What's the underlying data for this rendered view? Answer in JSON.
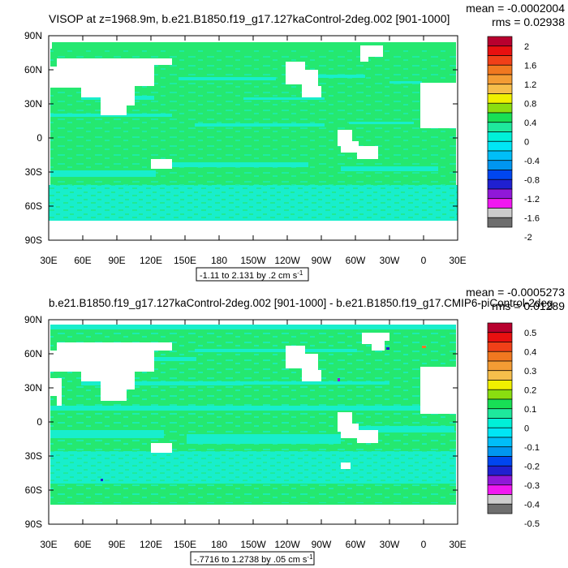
{
  "panels": [
    {
      "title": "VISOP at z=1968.9m, b.e21.B1850.f19_g17.127kaControl-2deg.002 [901-1000]",
      "mean_text": "mean = -0.0002004",
      "rms_text": "rms = 0.02938",
      "range_text": "-1.11 to 2.131 by .2 cm s",
      "range_unit_exp": "-1",
      "chart_data": {
        "type": "heatmap",
        "x_ticks": [
          "30E",
          "60E",
          "90E",
          "120E",
          "150E",
          "180",
          "150W",
          "120W",
          "90W",
          "60W",
          "30W",
          "0",
          "30E"
        ],
        "y_ticks": [
          "90N",
          "60N",
          "30N",
          "0",
          "30S",
          "60S",
          "90S"
        ],
        "colorbar_levels": [
          "2",
          "1.6",
          "1.2",
          "0.8",
          "0.4",
          "0",
          "-0.4",
          "-0.8",
          "-1.2",
          "-1.6",
          "-2"
        ],
        "colorbar_colors": [
          "#b8002e",
          "#e81010",
          "#f04018",
          "#f07820",
          "#f39c34",
          "#f6be4b",
          "#f0f000",
          "#8ade10",
          "#18df55",
          "#1ee89c",
          "#00f0d8",
          "#00e6f5",
          "#00bef8",
          "#0096f0",
          "#0046f0",
          "#2020d0",
          "#9018d8",
          "#f018f0",
          "#cccccc",
          "#6e6e6e"
        ]
      }
    },
    {
      "title": "b.e21.B1850.f19_g17.127kaControl-2deg.002 [901-1000] - b.e21.B1850.f19_g17.CMIP6-piControl-2deg.",
      "mean_text": "mean = -0.0005273",
      "rms_text": "rms = 0.01289",
      "range_text": "-.7716 to 1.2738 by .05 cm s",
      "range_unit_exp": "-1",
      "chart_data": {
        "type": "heatmap",
        "x_ticks": [
          "30E",
          "60E",
          "90E",
          "120E",
          "150E",
          "180",
          "150W",
          "120W",
          "90W",
          "60W",
          "30W",
          "0",
          "30E"
        ],
        "y_ticks": [
          "90N",
          "60N",
          "30N",
          "0",
          "30S",
          "60S",
          "90S"
        ],
        "colorbar_levels": [
          "0.5",
          "0.4",
          "0.3",
          "0.2",
          "0.1",
          "0",
          "-0.1",
          "-0.2",
          "-0.3",
          "-0.4",
          "-0.5"
        ],
        "colorbar_colors": [
          "#b8002e",
          "#e81010",
          "#f04018",
          "#f07820",
          "#f39c34",
          "#f6be4b",
          "#f0f000",
          "#8ade10",
          "#18df55",
          "#1ee89c",
          "#00f0d8",
          "#00e6f5",
          "#00bef8",
          "#0096f0",
          "#0046f0",
          "#2020d0",
          "#9018d8",
          "#f018f0",
          "#cccccc",
          "#6e6e6e"
        ]
      }
    }
  ],
  "field_colors": {
    "green": "#25e870",
    "cyan": "#18eecc",
    "land": "#ffffff"
  }
}
